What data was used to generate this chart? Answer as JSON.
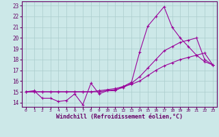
{
  "title": "",
  "xlabel": "Windchill (Refroidissement éolien,°C)",
  "background_color": "#cce8e8",
  "grid_color": "#aacccc",
  "line_color": "#990099",
  "xlim": [
    -0.5,
    23.5
  ],
  "ylim": [
    13.6,
    23.4
  ],
  "xticks": [
    0,
    1,
    2,
    3,
    4,
    5,
    6,
    7,
    8,
    9,
    10,
    11,
    12,
    13,
    14,
    15,
    16,
    17,
    18,
    19,
    20,
    21,
    22,
    23
  ],
  "yticks": [
    14,
    15,
    16,
    17,
    18,
    19,
    20,
    21,
    22,
    23
  ],
  "line1_x": [
    0,
    1,
    2,
    3,
    4,
    5,
    6,
    7,
    8,
    9,
    10,
    11,
    12,
    13,
    14,
    15,
    16,
    17,
    18,
    19,
    20,
    21,
    22,
    23
  ],
  "line1_y": [
    15.0,
    15.1,
    14.4,
    14.4,
    14.1,
    14.2,
    14.8,
    13.8,
    15.8,
    14.8,
    15.1,
    15.1,
    15.5,
    15.9,
    18.7,
    21.1,
    22.0,
    22.9,
    21.0,
    20.0,
    19.2,
    18.4,
    17.8,
    17.5
  ],
  "line2_x": [
    0,
    1,
    2,
    3,
    4,
    5,
    6,
    7,
    8,
    9,
    10,
    11,
    12,
    13,
    14,
    15,
    16,
    17,
    18,
    19,
    20,
    21,
    22,
    23
  ],
  "line2_y": [
    15.0,
    15.0,
    15.0,
    15.0,
    15.0,
    15.0,
    15.0,
    15.0,
    15.0,
    15.1,
    15.2,
    15.3,
    15.5,
    15.7,
    16.0,
    16.5,
    17.0,
    17.4,
    17.7,
    18.0,
    18.2,
    18.4,
    18.6,
    17.5
  ],
  "line3_x": [
    0,
    1,
    2,
    3,
    4,
    5,
    6,
    7,
    8,
    9,
    10,
    11,
    12,
    13,
    14,
    15,
    16,
    17,
    18,
    19,
    20,
    21,
    22,
    23
  ],
  "line3_y": [
    15.0,
    15.0,
    15.0,
    15.0,
    15.0,
    15.0,
    15.0,
    15.0,
    15.0,
    15.0,
    15.1,
    15.2,
    15.4,
    15.8,
    16.4,
    17.2,
    18.0,
    18.8,
    19.2,
    19.6,
    19.8,
    20.0,
    18.0,
    17.5
  ]
}
